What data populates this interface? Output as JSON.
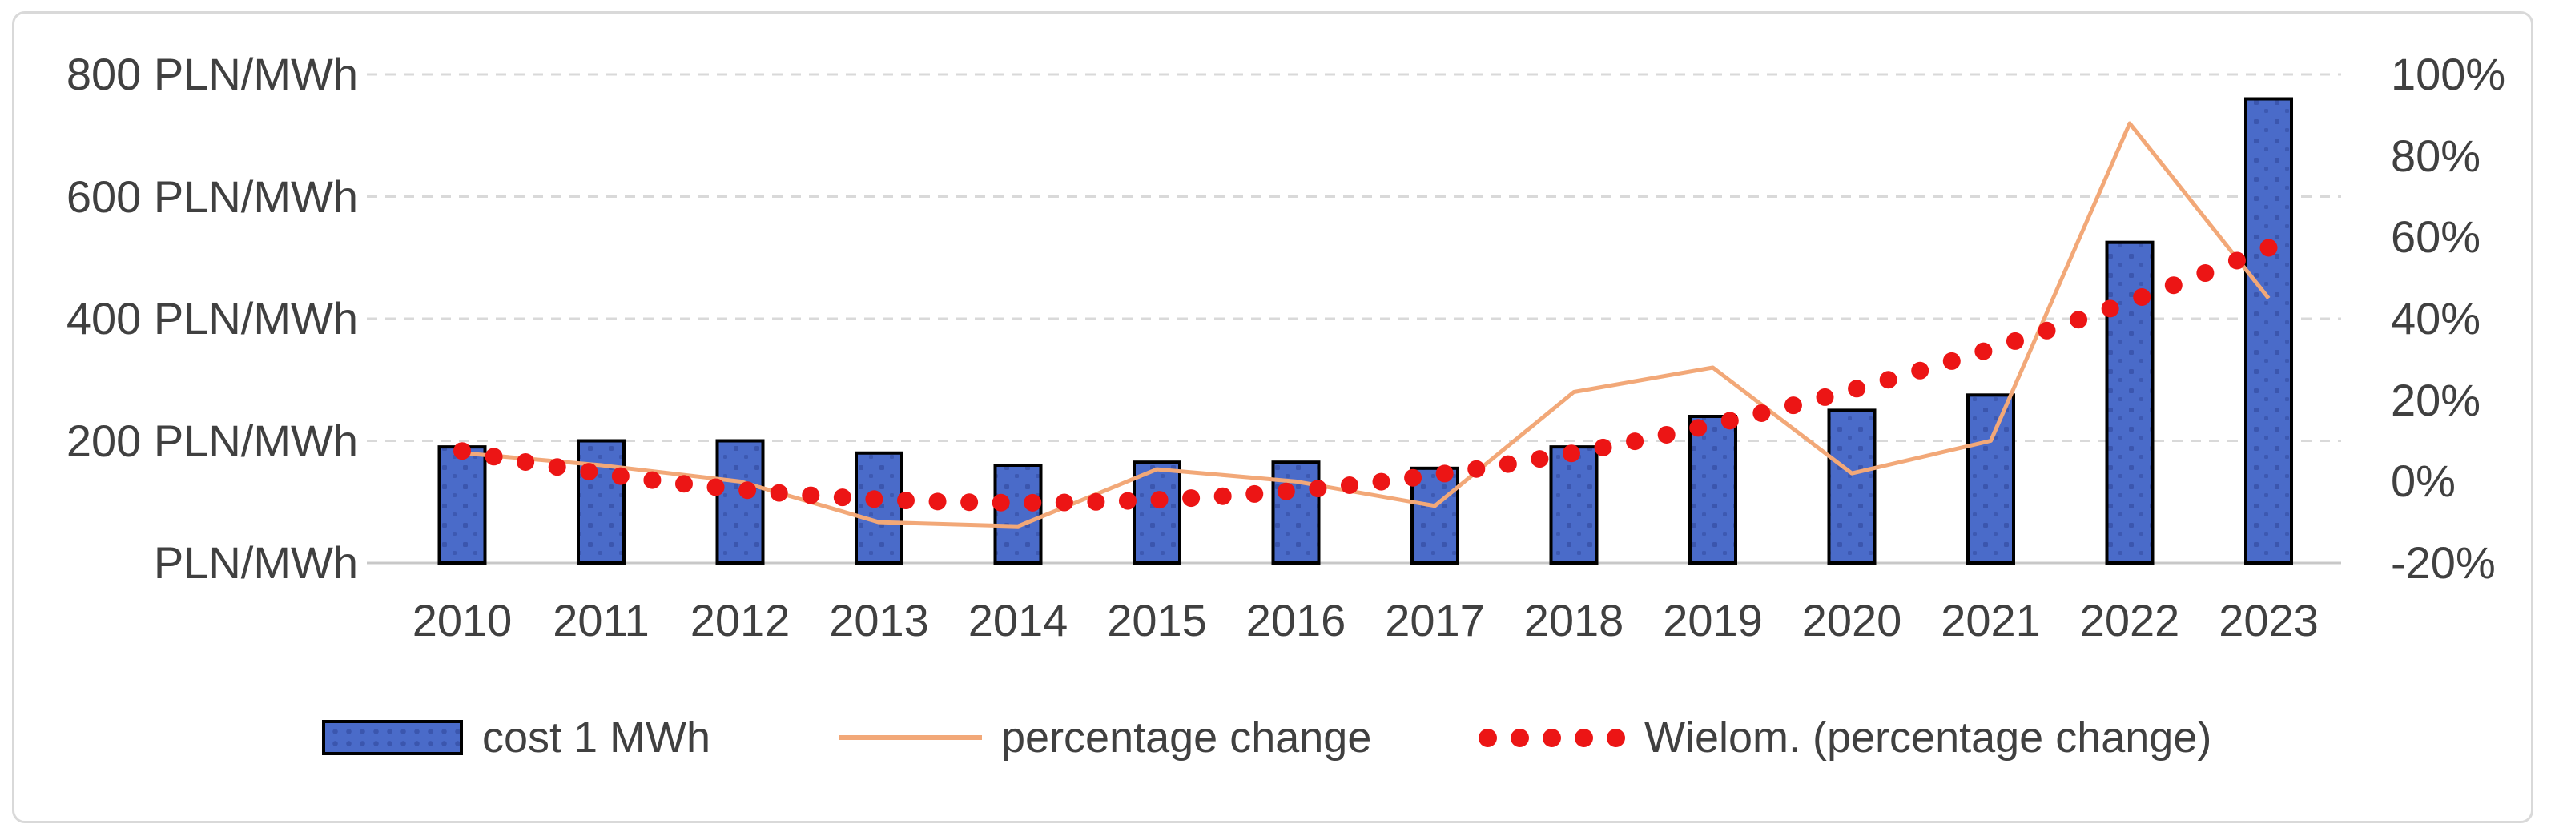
{
  "chart_data": {
    "type": "bar",
    "subtype": "combo-bar-line-trendline",
    "title": "",
    "categories": [
      "2010",
      "2011",
      "2012",
      "2013",
      "2014",
      "2015",
      "2016",
      "2017",
      "2018",
      "2019",
      "2020",
      "2021",
      "2022",
      "2023"
    ],
    "series": [
      {
        "name": "cost 1 MWh",
        "type": "bar",
        "axis": "left",
        "unit": "PLN/MWh",
        "values": [
          190,
          200,
          200,
          180,
          160,
          165,
          165,
          155,
          190,
          240,
          250,
          275,
          525,
          760
        ]
      },
      {
        "name": "percentage change",
        "type": "line",
        "axis": "right",
        "unit": "%",
        "values": [
          7,
          4,
          0,
          -10,
          -11,
          3,
          0,
          -6,
          22,
          28,
          2,
          10,
          88,
          45
        ]
      },
      {
        "name": "Wielom. (percentage change)",
        "type": "polynomial-trendline",
        "axis": "right",
        "unit": "%",
        "values": [
          7.5,
          2.0,
          -2.0,
          -4.4,
          -5.2,
          -4.5,
          -2.2,
          1.7,
          7.0,
          14.0,
          22.5,
          32.7,
          44.2,
          57.4
        ],
        "poly": {
          "a": 0.78,
          "b": -6.3,
          "c": 7.5
        }
      }
    ],
    "left_axis": {
      "range": [
        0,
        800
      ],
      "labels": [
        {
          "value": 800,
          "text": "800 PLN/MWh"
        },
        {
          "value": 600,
          "text": "600 PLN/MWh"
        },
        {
          "value": 400,
          "text": "400 PLN/MWh"
        },
        {
          "value": 200,
          "text": "200 PLN/MWh"
        },
        {
          "value": 0,
          "text": "PLN/MWh"
        }
      ]
    },
    "right_axis": {
      "range": [
        -20,
        100
      ],
      "labels": [
        {
          "value": 100,
          "text": "100%"
        },
        {
          "value": 80,
          "text": "80%"
        },
        {
          "value": 60,
          "text": "60%"
        },
        {
          "value": 40,
          "text": "40%"
        },
        {
          "value": 20,
          "text": "20%"
        },
        {
          "value": 0,
          "text": "0%"
        },
        {
          "value": -20,
          "text": "-20%"
        }
      ]
    },
    "legend_position": "bottom",
    "gridlines": "horizontal, dashed, at left-axis ticks"
  },
  "legend": {
    "items": [
      {
        "label": "cost 1 MWh",
        "marker": "blue-patterned-rectangle"
      },
      {
        "label": "percentage change",
        "marker": "orange-line"
      },
      {
        "label": "Wielom. (percentage change)",
        "marker": "red-dotted-line"
      }
    ]
  },
  "colors": {
    "bar_fill": "#4a6bc9",
    "bar_pattern_dot": "#3b56ae",
    "bar_border": "#000000",
    "percentage_line": "#f2a878",
    "trendline_dot": "#ec1515",
    "gridline": "#d9d9d9",
    "axis_line": "#c8c8c8",
    "text": "#404040",
    "frame_border": "#d9d9d9"
  }
}
